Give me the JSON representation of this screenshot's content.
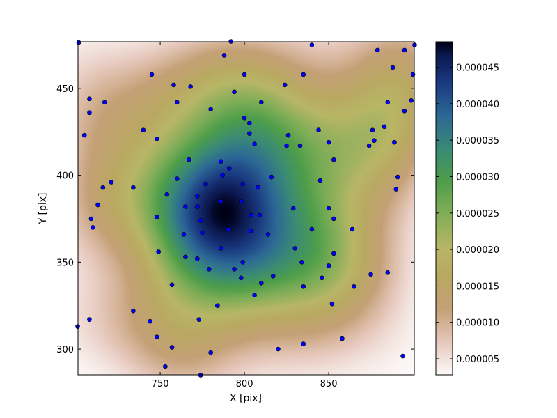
{
  "chart_data": {
    "type": "heatmap",
    "overlay": "scatter",
    "xlabel": "X [pix]",
    "ylabel": "Y [pix]",
    "xlim": [
      701.2,
      900.8
    ],
    "ylim": [
      285.2,
      476.8
    ],
    "xticks": [
      750,
      800,
      850
    ],
    "yticks": [
      300,
      350,
      400,
      450
    ],
    "grid": false,
    "colormap": "gist_earth_r",
    "colorbar": {
      "range": [
        2.8e-06,
        4.85e-05
      ],
      "ticks": [
        5e-06,
        1e-05,
        1.5e-05,
        2e-05,
        2.5e-05,
        3e-05,
        3.5e-05,
        4e-05,
        4.5e-05
      ],
      "tick_labels": [
        "0.000005",
        "0.000010",
        "0.000015",
        "0.000020",
        "0.000025",
        "0.000030",
        "0.000035",
        "0.000040",
        "0.000045"
      ]
    },
    "point_color": "#0000ff",
    "points": [
      [
        701.6,
        476.4
      ],
      [
        792,
        477
      ],
      [
        840,
        475
      ],
      [
        901,
        475
      ],
      [
        879,
        472
      ],
      [
        895,
        472
      ],
      [
        788,
        469
      ],
      [
        745,
        458
      ],
      [
        800,
        458
      ],
      [
        835,
        458
      ],
      [
        888,
        462
      ],
      [
        900,
        458
      ],
      [
        758,
        452
      ],
      [
        768,
        451
      ],
      [
        824,
        452
      ],
      [
        794,
        448
      ],
      [
        708,
        444
      ],
      [
        717,
        442
      ],
      [
        760,
        442
      ],
      [
        810,
        442
      ],
      [
        885,
        442
      ],
      [
        899,
        443
      ],
      [
        708,
        436
      ],
      [
        780,
        438
      ],
      [
        895,
        437
      ],
      [
        800,
        433
      ],
      [
        803,
        430
      ],
      [
        705,
        423
      ],
      [
        740,
        426
      ],
      [
        844,
        426
      ],
      [
        883,
        428
      ],
      [
        876,
        426
      ],
      [
        803,
        424
      ],
      [
        826,
        423
      ],
      [
        748,
        421
      ],
      [
        877,
        420
      ],
      [
        850,
        419
      ],
      [
        806,
        418
      ],
      [
        833,
        417
      ],
      [
        825,
        417
      ],
      [
        874,
        417
      ],
      [
        889,
        419
      ],
      [
        767,
        409
      ],
      [
        853,
        409
      ],
      [
        786,
        408
      ],
      [
        791,
        404
      ],
      [
        787,
        400
      ],
      [
        721,
        396
      ],
      [
        816,
        399
      ],
      [
        760,
        398
      ],
      [
        891,
        399
      ],
      [
        845,
        397
      ],
      [
        799,
        395
      ],
      [
        777,
        395
      ],
      [
        716,
        393
      ],
      [
        734,
        393
      ],
      [
        808,
        393
      ],
      [
        890,
        392
      ],
      [
        754,
        389
      ],
      [
        772,
        388
      ],
      [
        786,
        385
      ],
      [
        798,
        385
      ],
      [
        713,
        383
      ],
      [
        765,
        382
      ],
      [
        772,
        382
      ],
      [
        829,
        381
      ],
      [
        850,
        381
      ],
      [
        804,
        377
      ],
      [
        809,
        377
      ],
      [
        748,
        376
      ],
      [
        709,
        375
      ],
      [
        853,
        375
      ],
      [
        774,
        374
      ],
      [
        710,
        370
      ],
      [
        840,
        369
      ],
      [
        864,
        369
      ],
      [
        790.5,
        369
      ],
      [
        803.7,
        368
      ],
      [
        775,
        367
      ],
      [
        764,
        366
      ],
      [
        814,
        366
      ],
      [
        830,
        358
      ],
      [
        749,
        356
      ],
      [
        786,
        358
      ],
      [
        853,
        355
      ],
      [
        765,
        353
      ],
      [
        772,
        352
      ],
      [
        834,
        350
      ],
      [
        799,
        350
      ],
      [
        850,
        348
      ],
      [
        779,
        346
      ],
      [
        794,
        346
      ],
      [
        817,
        342
      ],
      [
        875,
        343
      ],
      [
        885,
        344
      ],
      [
        846,
        341
      ],
      [
        798,
        341
      ],
      [
        757,
        337
      ],
      [
        810,
        338
      ],
      [
        835,
        336
      ],
      [
        865,
        336
      ],
      [
        806,
        331
      ],
      [
        784,
        325
      ],
      [
        852,
        326
      ],
      [
        734,
        322
      ],
      [
        744,
        316
      ],
      [
        773,
        317
      ],
      [
        708,
        317
      ],
      [
        701,
        313
      ],
      [
        748,
        307
      ],
      [
        858,
        306
      ],
      [
        835,
        303
      ],
      [
        757,
        301
      ],
      [
        820,
        300
      ],
      [
        780,
        298
      ],
      [
        894,
        296
      ],
      [
        753,
        290
      ],
      [
        774,
        285
      ]
    ]
  }
}
